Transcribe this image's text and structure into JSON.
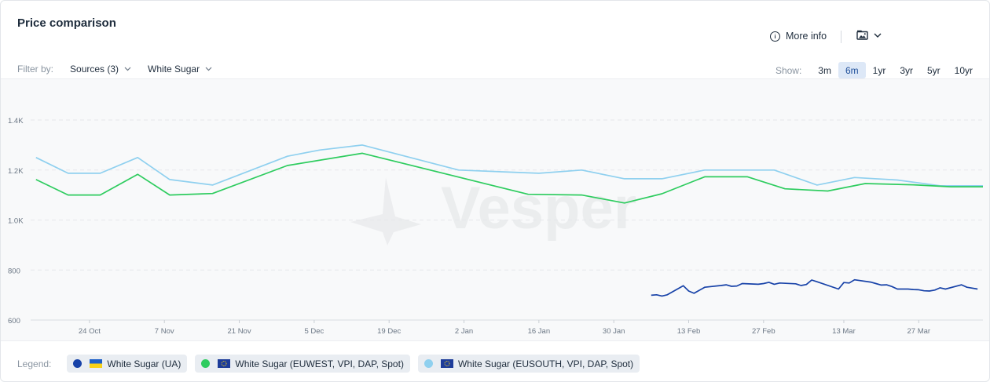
{
  "header": {
    "title": "Price comparison",
    "more_info_label": "More info",
    "export_icon": "image-icon"
  },
  "filters": {
    "label": "Filter by:",
    "sources_label": "Sources (3)",
    "product_label": "White Sugar"
  },
  "range": {
    "label": "Show:",
    "options": [
      "3m",
      "6m",
      "1yr",
      "3yr",
      "5yr",
      "10yr"
    ],
    "selected": "6m"
  },
  "watermark": "Vesper",
  "legend": {
    "label": "Legend:",
    "items": [
      {
        "label": "White Sugar (UA)",
        "color": "#1742a8",
        "flag": "ukraine-flag-icon"
      },
      {
        "label": "White Sugar (EUWEST, VPI, DAP, Spot)",
        "color": "#2ecc5f",
        "flag": "eu-flag-icon"
      },
      {
        "label": "White Sugar (EUSOUTH, VPI, DAP, Spot)",
        "color": "#8fd0ef",
        "flag": "eu-flag-icon"
      }
    ]
  },
  "chart_data": {
    "type": "line",
    "title": "",
    "xlabel": "",
    "ylabel": "",
    "ylim": [
      600,
      1400
    ],
    "yticks": [
      600,
      800,
      1000,
      1200,
      1400
    ],
    "ytick_labels": [
      "600",
      "800",
      "1.0K",
      "1.2K",
      "1.4K"
    ],
    "xlim": [
      "2023-10-13",
      "2024-04-08"
    ],
    "xticks": [
      "2023-10-24",
      "2023-11-07",
      "2023-11-21",
      "2023-12-05",
      "2023-12-19",
      "2024-01-02",
      "2024-01-16",
      "2024-01-30",
      "2024-02-13",
      "2024-02-27",
      "2024-03-13",
      "2024-03-27"
    ],
    "xtick_labels": [
      "24 Oct",
      "7 Nov",
      "21 Nov",
      "5 Dec",
      "19 Dec",
      "2 Jan",
      "16 Jan",
      "30 Jan",
      "13 Feb",
      "27 Feb",
      "13 Mar",
      "27 Mar"
    ],
    "grid": true,
    "legend_position": "bottom",
    "series": [
      {
        "name": "White Sugar (EUSOUTH, VPI, DAP, Spot)",
        "color": "#8fd0ef",
        "points": [
          [
            "2023-10-14",
            1250
          ],
          [
            "2023-10-20",
            1187
          ],
          [
            "2023-10-26",
            1187
          ],
          [
            "2023-11-02",
            1250
          ],
          [
            "2023-11-08",
            1162
          ],
          [
            "2023-11-16",
            1140
          ],
          [
            "2023-11-30",
            1255
          ],
          [
            "2023-12-06",
            1280
          ],
          [
            "2023-12-14",
            1300
          ],
          [
            "2024-01-01",
            1200
          ],
          [
            "2024-01-16",
            1187
          ],
          [
            "2024-01-24",
            1200
          ],
          [
            "2024-02-01",
            1165
          ],
          [
            "2024-02-08",
            1165
          ],
          [
            "2024-02-16",
            1200
          ],
          [
            "2024-02-29",
            1200
          ],
          [
            "2024-03-08",
            1140
          ],
          [
            "2024-03-15",
            1170
          ],
          [
            "2024-03-23",
            1160
          ],
          [
            "2024-03-31",
            1137
          ],
          [
            "2024-04-08",
            1137
          ]
        ]
      },
      {
        "name": "White Sugar (EUWEST, VPI, DAP, Spot)",
        "color": "#2ecc5f",
        "points": [
          [
            "2023-10-14",
            1162
          ],
          [
            "2023-10-20",
            1100
          ],
          [
            "2023-10-26",
            1100
          ],
          [
            "2023-11-02",
            1183
          ],
          [
            "2023-11-08",
            1100
          ],
          [
            "2023-11-16",
            1106
          ],
          [
            "2023-11-30",
            1218
          ],
          [
            "2023-12-14",
            1267
          ],
          [
            "2024-01-14",
            1103
          ],
          [
            "2024-01-24",
            1100
          ],
          [
            "2024-02-01",
            1068
          ],
          [
            "2024-02-08",
            1105
          ],
          [
            "2024-02-16",
            1173
          ],
          [
            "2024-02-24",
            1173
          ],
          [
            "2024-03-02",
            1125
          ],
          [
            "2024-03-10",
            1116
          ],
          [
            "2024-03-17",
            1146
          ],
          [
            "2024-03-26",
            1141
          ],
          [
            "2024-04-02",
            1133
          ],
          [
            "2024-04-08",
            1133
          ]
        ]
      },
      {
        "name": "White Sugar (UA)",
        "color": "#1742a8",
        "points": [
          [
            "2024-02-06",
            699
          ],
          [
            "2024-02-07",
            701
          ],
          [
            "2024-02-08",
            696
          ],
          [
            "2024-02-09",
            701
          ],
          [
            "2024-02-12",
            737
          ],
          [
            "2024-02-13",
            716
          ],
          [
            "2024-02-14",
            707
          ],
          [
            "2024-02-16",
            731
          ],
          [
            "2024-02-19",
            738
          ],
          [
            "2024-02-20",
            741
          ],
          [
            "2024-02-21",
            735
          ],
          [
            "2024-02-22",
            736
          ],
          [
            "2024-02-23",
            746
          ],
          [
            "2024-02-26",
            743
          ],
          [
            "2024-02-27",
            746
          ],
          [
            "2024-02-28",
            751
          ],
          [
            "2024-02-29",
            743
          ],
          [
            "2024-03-01",
            748
          ],
          [
            "2024-03-04",
            745
          ],
          [
            "2024-03-05",
            738
          ],
          [
            "2024-03-06",
            742
          ],
          [
            "2024-03-07",
            760
          ],
          [
            "2024-03-08",
            753
          ],
          [
            "2024-03-12",
            724
          ],
          [
            "2024-03-13",
            750
          ],
          [
            "2024-03-14",
            748
          ],
          [
            "2024-03-15",
            761
          ],
          [
            "2024-03-18",
            752
          ],
          [
            "2024-03-19",
            746
          ],
          [
            "2024-03-20",
            740
          ],
          [
            "2024-03-21",
            741
          ],
          [
            "2024-03-22",
            734
          ],
          [
            "2024-03-23",
            724
          ],
          [
            "2024-03-25",
            724
          ],
          [
            "2024-03-26",
            722
          ],
          [
            "2024-03-27",
            721
          ],
          [
            "2024-03-28",
            717
          ],
          [
            "2024-03-29",
            716
          ],
          [
            "2024-03-30",
            720
          ],
          [
            "2024-03-31",
            729
          ],
          [
            "2024-04-01",
            724
          ],
          [
            "2024-04-04",
            741
          ],
          [
            "2024-04-05",
            731
          ],
          [
            "2024-04-07",
            724
          ]
        ]
      }
    ]
  }
}
